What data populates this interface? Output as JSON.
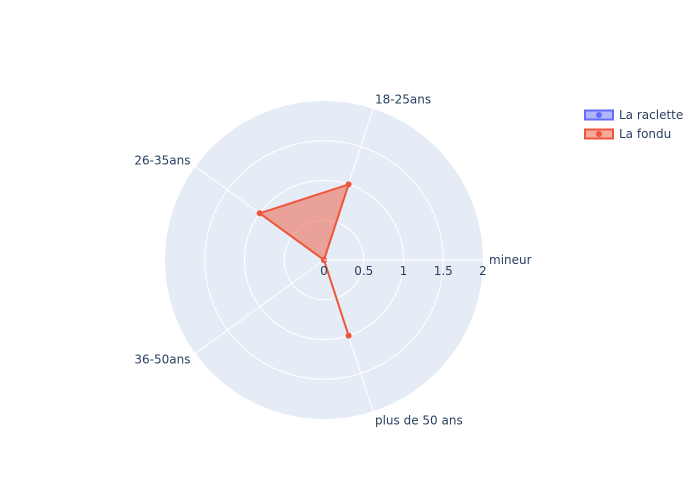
{
  "chart_data": {
    "type": "radar",
    "axes": [
      "mineur",
      "18-25ans",
      "26-35ans",
      "36-50ans",
      "plus de 50 ans"
    ],
    "radial_range": [
      0,
      2
    ],
    "radial_ticks": [
      "0",
      "0.5",
      "1",
      "1.5",
      "2"
    ],
    "grid": true,
    "legend_position": "top-right",
    "series": [
      {
        "name": "La raclette",
        "values": [
          0,
          0,
          0,
          0,
          0
        ],
        "color": "#636efa"
      },
      {
        "name": "La fondu",
        "values": [
          0,
          1,
          1,
          0,
          1
        ],
        "color": "#ef553b"
      }
    ]
  }
}
